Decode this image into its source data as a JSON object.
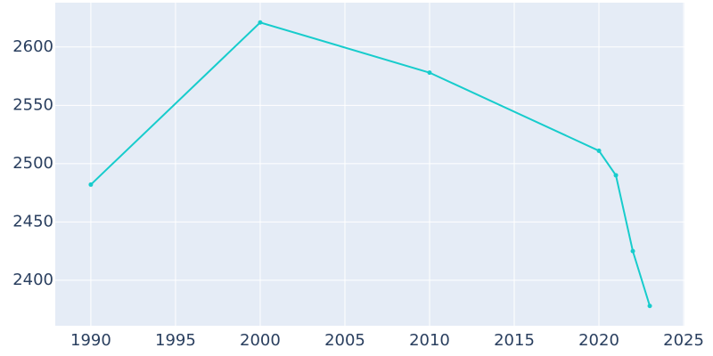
{
  "chart_data": {
    "type": "line",
    "x": [
      1990,
      2000,
      2010,
      2020,
      2021,
      2022,
      2023
    ],
    "series": [
      {
        "color": "#17cccc",
        "values": [
          2482,
          2621,
          2578,
          2511,
          2490,
          2425,
          2378
        ]
      }
    ],
    "xlim": [
      1987.9,
      2025.05
    ],
    "xticks": [
      1990,
      1995,
      2000,
      2005,
      2010,
      2015,
      2020,
      2025
    ],
    "ylim": [
      2361,
      2638
    ],
    "yticks": [
      2400,
      2450,
      2500,
      2550,
      2600
    ],
    "grid": true,
    "background": "#e5ecf6"
  }
}
